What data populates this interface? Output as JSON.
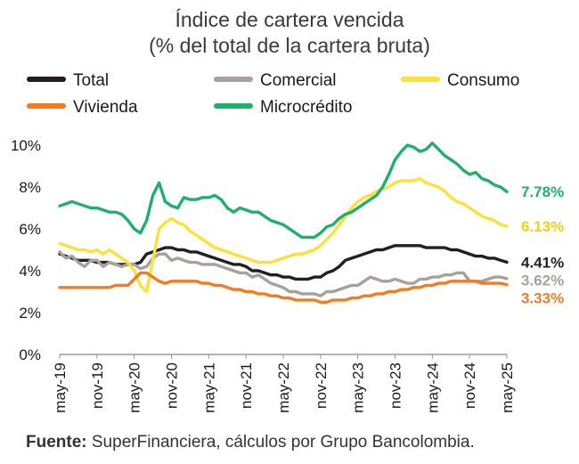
{
  "chart_data": {
    "type": "line",
    "title": "Índice de cartera vencida",
    "subtitle": "(% del total de la cartera bruta)",
    "xlabel": "",
    "ylabel": "",
    "ylim": [
      0,
      10
    ],
    "yticks": [
      0,
      2,
      4,
      6,
      8,
      10
    ],
    "ytick_labels": [
      "0%",
      "2%",
      "4%",
      "6%",
      "8%",
      "10%"
    ],
    "x_start": "may-19",
    "x_end": "may-25",
    "n_months": 73,
    "x_tick_labels": [
      "may-19",
      "nov-19",
      "may-20",
      "nov-20",
      "may-21",
      "nov-21",
      "may-22",
      "nov-22",
      "may-23",
      "nov-23",
      "may-24",
      "nov-24",
      "may-25"
    ],
    "legend_position": "top",
    "source_label": "Fuente:",
    "source_text": " SuperFinanciera, cálculos por Grupo Bancolombia.",
    "series": [
      {
        "name": "Total",
        "color": "#231f20",
        "end_label": "4.41%",
        "values": [
          4.8,
          4.7,
          4.6,
          4.5,
          4.5,
          4.5,
          4.4,
          4.4,
          4.4,
          4.3,
          4.3,
          4.3,
          4.3,
          4.4,
          4.8,
          4.9,
          5.0,
          5.1,
          5.1,
          5.0,
          5.0,
          4.9,
          4.9,
          4.8,
          4.7,
          4.6,
          4.5,
          4.4,
          4.3,
          4.3,
          4.2,
          4.0,
          4.0,
          3.9,
          3.8,
          3.8,
          3.7,
          3.7,
          3.6,
          3.6,
          3.6,
          3.7,
          3.7,
          3.9,
          4.0,
          4.2,
          4.5,
          4.6,
          4.7,
          4.8,
          4.9,
          5.0,
          5.0,
          5.1,
          5.2,
          5.2,
          5.2,
          5.2,
          5.2,
          5.1,
          5.1,
          5.1,
          5.1,
          5.0,
          5.0,
          4.9,
          4.8,
          4.7,
          4.7,
          4.6,
          4.6,
          4.5,
          4.41
        ]
      },
      {
        "name": "Comercial",
        "color": "#a6a19b",
        "end_label": "3.62%",
        "values": [
          4.9,
          4.6,
          4.7,
          4.4,
          4.2,
          4.5,
          4.5,
          4.2,
          4.4,
          4.3,
          4.2,
          4.3,
          4.3,
          4.1,
          4.2,
          4.6,
          4.8,
          4.8,
          4.5,
          4.6,
          4.5,
          4.4,
          4.4,
          4.3,
          4.3,
          4.3,
          4.2,
          4.1,
          4.0,
          3.9,
          3.9,
          3.7,
          3.8,
          3.6,
          3.4,
          3.3,
          3.2,
          3.0,
          3.0,
          2.9,
          2.9,
          2.9,
          2.8,
          3.0,
          3.0,
          3.1,
          3.2,
          3.3,
          3.3,
          3.5,
          3.7,
          3.6,
          3.5,
          3.5,
          3.6,
          3.5,
          3.4,
          3.4,
          3.6,
          3.6,
          3.7,
          3.7,
          3.8,
          3.8,
          3.9,
          3.9,
          3.5,
          3.5,
          3.5,
          3.6,
          3.7,
          3.7,
          3.62
        ]
      },
      {
        "name": "Consumo",
        "color": "#fde13b",
        "end_label": "6.13%",
        "values": [
          5.3,
          5.2,
          5.1,
          5.0,
          5.0,
          4.9,
          5.0,
          4.8,
          5.0,
          4.8,
          4.6,
          4.4,
          4.0,
          3.3,
          3.0,
          4.5,
          6.0,
          6.3,
          6.5,
          6.3,
          6.2,
          5.9,
          5.7,
          5.5,
          5.3,
          5.1,
          5.0,
          4.9,
          4.8,
          4.7,
          4.6,
          4.5,
          4.4,
          4.4,
          4.4,
          4.5,
          4.6,
          4.7,
          4.8,
          4.8,
          4.9,
          5.0,
          5.2,
          5.5,
          5.8,
          6.2,
          6.6,
          7.0,
          7.3,
          7.5,
          7.6,
          7.8,
          7.9,
          8.0,
          8.2,
          8.3,
          8.3,
          8.3,
          8.4,
          8.2,
          8.1,
          8.0,
          7.8,
          7.5,
          7.3,
          7.2,
          7.0,
          6.8,
          6.6,
          6.5,
          6.4,
          6.2,
          6.13
        ]
      },
      {
        "name": "Vivienda",
        "color": "#f47b20",
        "end_label": "3.33%",
        "values": [
          3.2,
          3.2,
          3.2,
          3.2,
          3.2,
          3.2,
          3.2,
          3.2,
          3.2,
          3.3,
          3.3,
          3.3,
          3.6,
          3.9,
          3.9,
          3.7,
          3.5,
          3.4,
          3.5,
          3.5,
          3.5,
          3.5,
          3.5,
          3.4,
          3.4,
          3.3,
          3.3,
          3.2,
          3.1,
          3.1,
          3.0,
          3.0,
          2.9,
          2.9,
          2.8,
          2.8,
          2.7,
          2.7,
          2.6,
          2.6,
          2.6,
          2.6,
          2.5,
          2.5,
          2.6,
          2.6,
          2.6,
          2.7,
          2.7,
          2.8,
          2.8,
          2.9,
          2.9,
          3.0,
          3.0,
          3.1,
          3.1,
          3.2,
          3.2,
          3.3,
          3.3,
          3.4,
          3.4,
          3.5,
          3.5,
          3.5,
          3.5,
          3.5,
          3.4,
          3.4,
          3.4,
          3.4,
          3.33
        ]
      },
      {
        "name": "Microcrédito",
        "color": "#1fb06b",
        "end_label": "7.78%",
        "values": [
          7.1,
          7.2,
          7.3,
          7.2,
          7.1,
          7.0,
          7.0,
          6.9,
          6.8,
          6.8,
          6.7,
          6.4,
          6.0,
          5.8,
          6.4,
          7.6,
          8.2,
          7.3,
          7.1,
          7.0,
          7.5,
          7.4,
          7.4,
          7.5,
          7.5,
          7.6,
          7.4,
          7.0,
          6.8,
          7.0,
          6.9,
          6.8,
          6.8,
          6.6,
          6.4,
          6.3,
          6.2,
          6.0,
          5.8,
          5.6,
          5.6,
          5.6,
          5.8,
          6.1,
          6.2,
          6.5,
          6.7,
          6.8,
          7.0,
          7.2,
          7.4,
          7.6,
          8.0,
          8.6,
          9.3,
          9.7,
          10.0,
          9.9,
          9.7,
          9.8,
          10.1,
          9.8,
          9.5,
          9.3,
          9.1,
          8.8,
          8.6,
          8.7,
          8.4,
          8.3,
          8.1,
          8.0,
          7.78
        ]
      }
    ]
  }
}
